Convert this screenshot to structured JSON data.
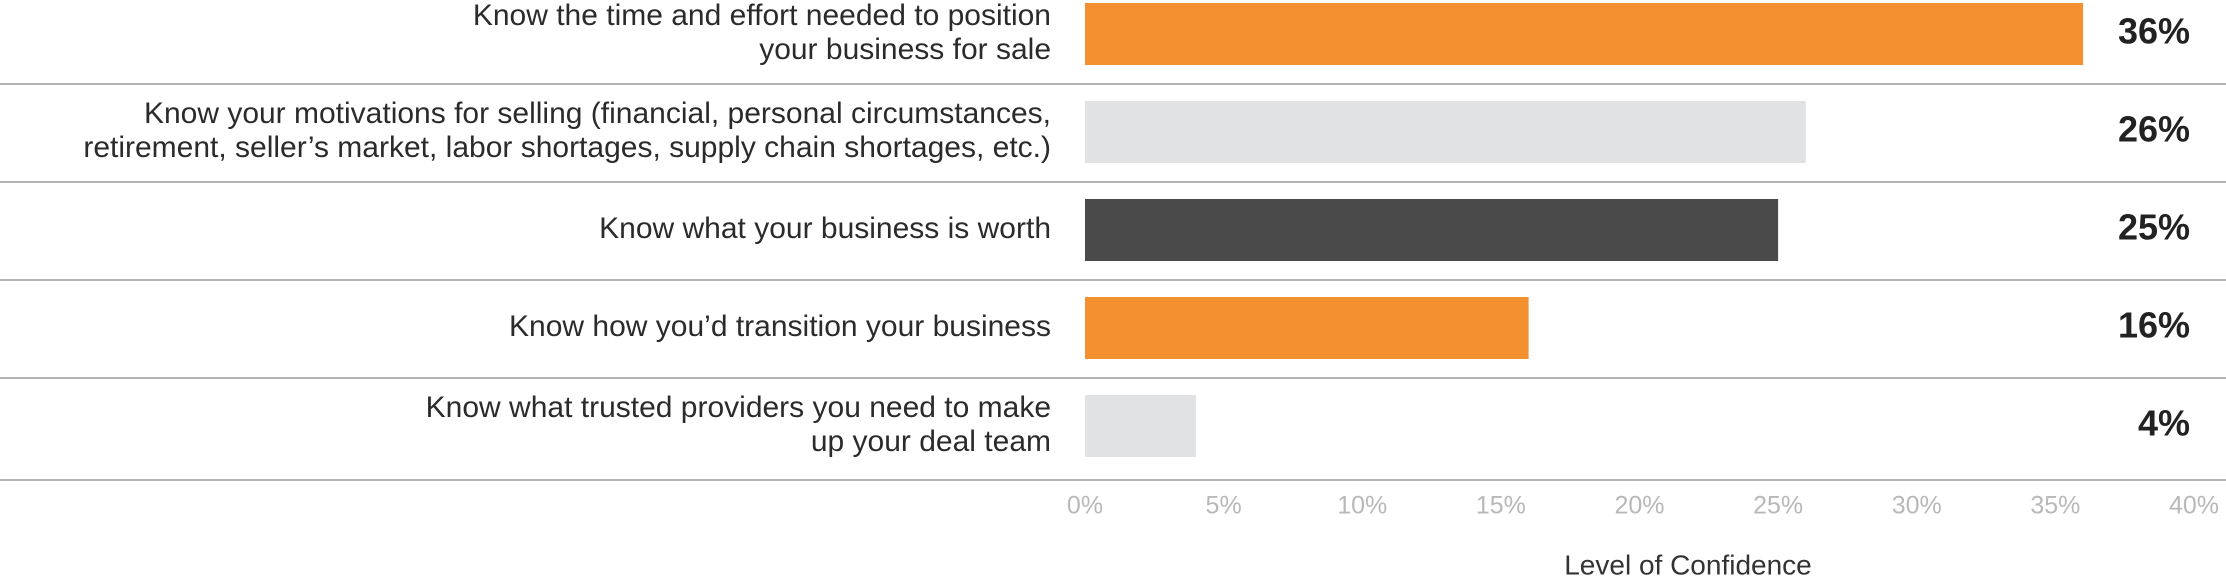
{
  "chart_data": {
    "type": "hbar",
    "categories": [
      [
        "Know the time and effort needed to position",
        "your business for sale"
      ],
      [
        "Know your motivations for selling (financial, personal circumstances,",
        "retirement, seller’s market, labor shortages, supply chain shortages, etc.)"
      ],
      [
        "Know what your business is worth"
      ],
      [
        "Know how you’d transition your business"
      ],
      [
        "Know what trusted providers you need to make",
        "up your deal team"
      ]
    ],
    "values": [
      36,
      26,
      25,
      16,
      4
    ],
    "value_labels": [
      "36%",
      "26%",
      "25%",
      "16%",
      "4%"
    ],
    "colors": [
      "#f39030",
      "#e1e2e3",
      "#4a4a4b",
      "#f39030",
      "#e1e2e3"
    ],
    "xlim": [
      0,
      40
    ],
    "xticks": [
      {
        "value": 0,
        "label": "0%"
      },
      {
        "value": 5,
        "label": "5%"
      },
      {
        "value": 10,
        "label": "10%"
      },
      {
        "value": 15,
        "label": "15%"
      },
      {
        "value": 20,
        "label": "20%"
      },
      {
        "value": 25,
        "label": "25%"
      },
      {
        "value": 30,
        "label": "30%"
      },
      {
        "value": 35,
        "label": "35%"
      },
      {
        "value": 40,
        "label": "40%"
      }
    ],
    "xlabel": "Level of Confidence"
  }
}
